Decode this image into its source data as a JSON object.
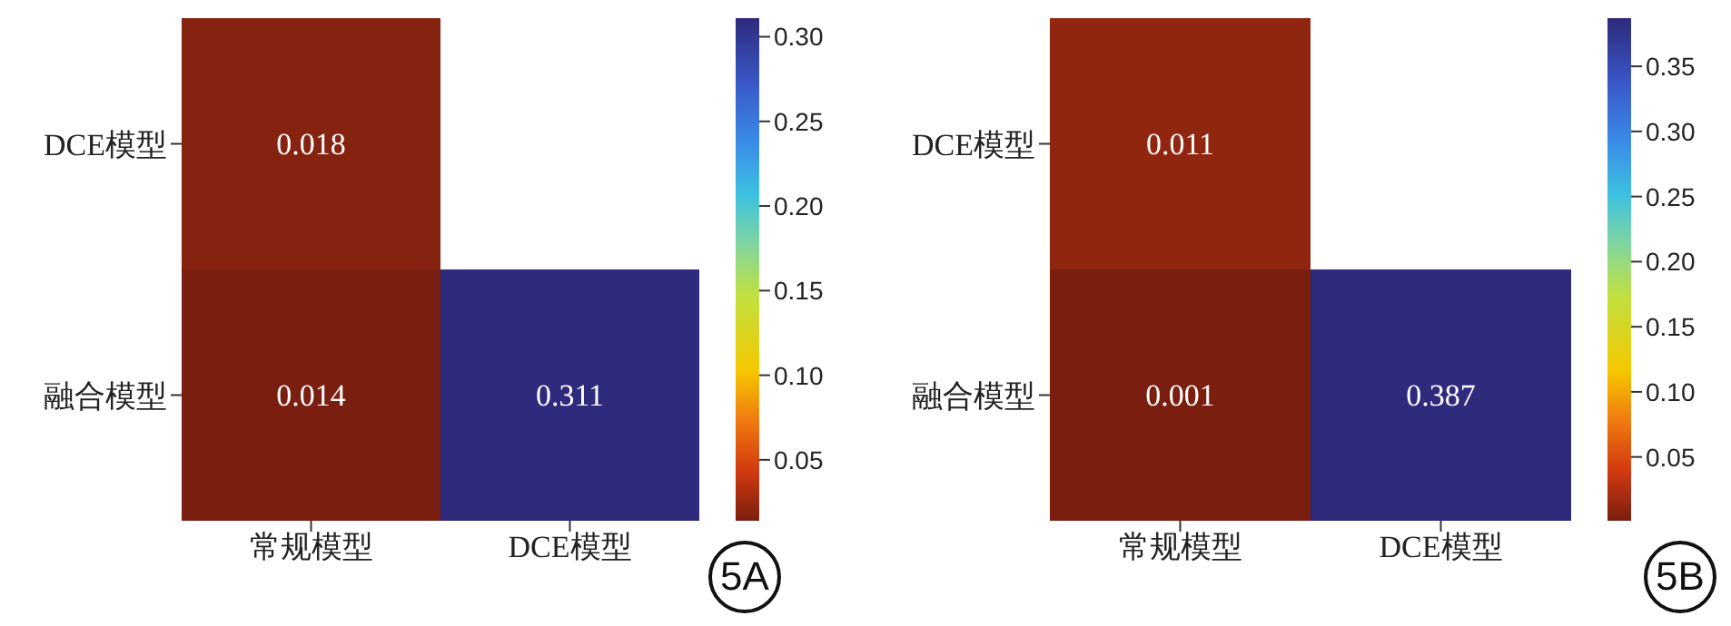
{
  "chart_data": [
    {
      "type": "heatmap",
      "categories": [
        "常规模型",
        "DCE模型"
      ],
      "y_categories": [
        "DCE模型",
        "融合模型"
      ],
      "cells": [
        [
          0.018,
          null
        ],
        [
          0.014,
          0.311
        ]
      ],
      "data_labels": true,
      "clim": [
        0.014,
        0.311
      ],
      "cticks": [
        0.05,
        {
          "value": 0.1,
          "label": "0.10"
        },
        0.15,
        {
          "value": 0.2,
          "label": "0.20"
        },
        0.25,
        {
          "value": 0.3,
          "label": "0.30"
        }
      ],
      "annotations": [
        "5A"
      ]
    },
    {
      "type": "heatmap",
      "categories": [
        "常规模型",
        "DCE模型"
      ],
      "y_categories": [
        "DCE模型",
        "融合模型"
      ],
      "cells": [
        [
          0.011,
          null
        ],
        [
          0.001,
          0.387
        ]
      ],
      "data_labels": true,
      "clim": [
        0.001,
        0.387
      ],
      "cticks": [
        0.05,
        {
          "value": 0.1,
          "label": "0.10"
        },
        0.15,
        {
          "value": 0.2,
          "label": "0.20"
        },
        0.25,
        {
          "value": 0.3,
          "label": "0.30"
        },
        0.35
      ],
      "annotations": [
        "5B"
      ]
    }
  ]
}
